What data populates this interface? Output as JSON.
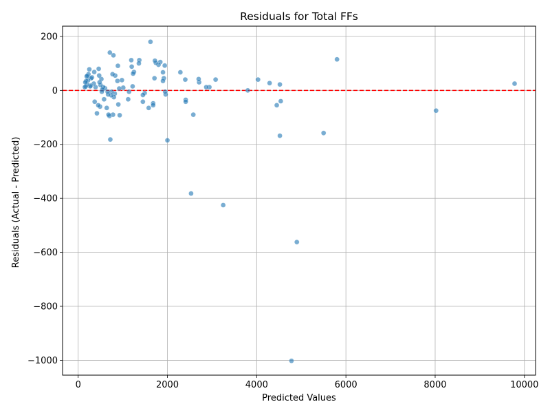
{
  "chart_data": {
    "type": "scatter",
    "title": "Residuals for Total FFs",
    "xlabel": "Predicted Values",
    "ylabel": "Residuals (Actual - Predicted)",
    "xlim": [
      -350,
      10250
    ],
    "ylim": [
      -1055,
      238
    ],
    "xticks": [
      0,
      2000,
      4000,
      6000,
      8000,
      10000
    ],
    "yticks": [
      200,
      0,
      -200,
      -400,
      -600,
      -800,
      -1000
    ],
    "xtick_labels": [
      "0",
      "2000",
      "4000",
      "6000",
      "8000",
      "10000"
    ],
    "ytick_labels": [
      "200",
      "0",
      "−200",
      "−400",
      "−600",
      "−800",
      "−1000"
    ],
    "grid": true,
    "reference_line": {
      "y": 0,
      "color": "#ff0000",
      "style": "dashed"
    },
    "marker_color": "#1f77b4",
    "marker_alpha": 0.6,
    "points": [
      [
        4780,
        -1002
      ],
      [
        4900,
        -562
      ],
      [
        3250,
        -425
      ],
      [
        2530,
        -382
      ],
      [
        5500,
        -158
      ],
      [
        4520,
        -168
      ],
      [
        8020,
        -75
      ],
      [
        9780,
        25
      ],
      [
        5800,
        115
      ],
      [
        4540,
        -40
      ],
      [
        4450,
        -55
      ],
      [
        4520,
        22
      ],
      [
        4290,
        27
      ],
      [
        4030,
        40
      ],
      [
        3800,
        0
      ],
      [
        3080,
        40
      ],
      [
        2940,
        12
      ],
      [
        2870,
        12
      ],
      [
        2710,
        30
      ],
      [
        2700,
        42
      ],
      [
        2580,
        -90
      ],
      [
        2410,
        -35
      ],
      [
        2410,
        -42
      ],
      [
        2400,
        40
      ],
      [
        2290,
        67
      ],
      [
        2000,
        -185
      ],
      [
        1960,
        -15
      ],
      [
        1950,
        -5
      ],
      [
        1940,
        92
      ],
      [
        1920,
        45
      ],
      [
        1900,
        67
      ],
      [
        1900,
        35
      ],
      [
        1840,
        105
      ],
      [
        1800,
        95
      ],
      [
        1740,
        102
      ],
      [
        1720,
        110
      ],
      [
        1710,
        45
      ],
      [
        1680,
        -48
      ],
      [
        1680,
        -55
      ],
      [
        1620,
        180
      ],
      [
        1580,
        -65
      ],
      [
        1490,
        -10
      ],
      [
        1450,
        -42
      ],
      [
        1450,
        -17
      ],
      [
        1370,
        112
      ],
      [
        1360,
        100
      ],
      [
        1250,
        68
      ],
      [
        1230,
        62
      ],
      [
        1220,
        15
      ],
      [
        1200,
        88
      ],
      [
        1190,
        112
      ],
      [
        1140,
        -5
      ],
      [
        1120,
        -33
      ],
      [
        1010,
        10
      ],
      [
        980,
        38
      ],
      [
        930,
        -92
      ],
      [
        920,
        7
      ],
      [
        900,
        -52
      ],
      [
        890,
        91
      ],
      [
        880,
        35
      ],
      [
        830,
        55
      ],
      [
        820,
        -12
      ],
      [
        800,
        -25
      ],
      [
        790,
        130
      ],
      [
        780,
        -90
      ],
      [
        770,
        60
      ],
      [
        750,
        -5
      ],
      [
        740,
        -18
      ],
      [
        720,
        -182
      ],
      [
        710,
        140
      ],
      [
        700,
        -95
      ],
      [
        680,
        -90
      ],
      [
        670,
        -15
      ],
      [
        660,
        -5
      ],
      [
        640,
        -65
      ],
      [
        600,
        8
      ],
      [
        580,
        -33
      ],
      [
        560,
        12
      ],
      [
        540,
        3
      ],
      [
        530,
        -5
      ],
      [
        520,
        42
      ],
      [
        500,
        20
      ],
      [
        490,
        -60
      ],
      [
        480,
        30
      ],
      [
        470,
        55
      ],
      [
        460,
        80
      ],
      [
        450,
        -55
      ],
      [
        420,
        -85
      ],
      [
        390,
        12
      ],
      [
        370,
        -42
      ],
      [
        360,
        68
      ],
      [
        350,
        25
      ],
      [
        310,
        48
      ],
      [
        290,
        45
      ],
      [
        280,
        18
      ],
      [
        270,
        15
      ],
      [
        250,
        78
      ],
      [
        230,
        60
      ],
      [
        220,
        37
      ],
      [
        210,
        55
      ],
      [
        200,
        22
      ],
      [
        190,
        52
      ],
      [
        180,
        35
      ],
      [
        170,
        15
      ],
      [
        160,
        30
      ],
      [
        150,
        12
      ]
    ]
  }
}
